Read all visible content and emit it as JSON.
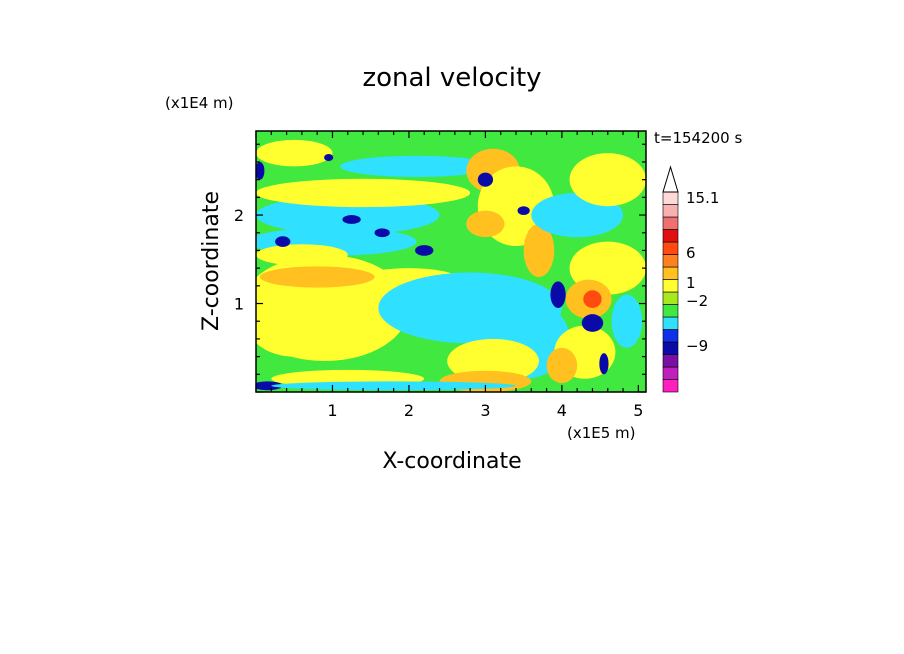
{
  "chart_data": {
    "type": "heatmap",
    "title": "zonal velocity",
    "xlabel": "X-coordinate",
    "ylabel": "Z-coordinate",
    "x_scale_label": "(x1E5 m)",
    "y_scale_label": "(x1E4 m)",
    "time_label": "t=154200 s",
    "xlim": [
      0,
      5.1
    ],
    "ylim": [
      0,
      2.95
    ],
    "x_ticks": [
      "1",
      "2",
      "3",
      "4",
      "5"
    ],
    "y_ticks": [
      "1",
      "2"
    ],
    "colorbar": {
      "tick_labels": [
        "15.1",
        "6",
        "1",
        "−2",
        "−9"
      ],
      "colors": [
        "#ff1fbf",
        "#c01fbf",
        "#7a0fa8",
        "#0a0aa8",
        "#1030e8",
        "#30e0ff",
        "#40e840",
        "#a8e820",
        "#ffff30",
        "#ffc020",
        "#ff8020",
        "#ff4a10",
        "#e01010",
        "#f07070",
        "#f8b0b0",
        "#ffd8d8"
      ]
    },
    "patches": [
      {
        "level": "green",
        "x": 2.3,
        "z": 0.85,
        "rx": 2.4,
        "rz": 0.75
      },
      {
        "level": "yellow",
        "x": 0.9,
        "z": 0.95,
        "rx": 1.1,
        "rz": 0.6
      },
      {
        "level": "yellow",
        "x": 0.5,
        "z": 0.75,
        "rx": 0.6,
        "rz": 0.35
      },
      {
        "level": "yellow",
        "x": 2.0,
        "z": 1.25,
        "rx": 0.7,
        "rz": 0.15
      },
      {
        "level": "orange",
        "x": 0.8,
        "z": 1.3,
        "rx": 0.75,
        "rz": 0.12
      },
      {
        "level": "cyan",
        "x": 2.8,
        "z": 0.95,
        "rx": 1.2,
        "rz": 0.4
      },
      {
        "level": "cyan",
        "x": 3.5,
        "z": 0.6,
        "rx": 0.6,
        "rz": 0.45
      },
      {
        "level": "yellow",
        "x": 3.1,
        "z": 0.35,
        "rx": 0.6,
        "rz": 0.25
      },
      {
        "level": "orange",
        "x": 3.0,
        "z": 0.12,
        "rx": 0.6,
        "rz": 0.12
      },
      {
        "level": "yellow",
        "x": 1.2,
        "z": 0.15,
        "rx": 1.0,
        "rz": 0.1
      },
      {
        "level": "blue",
        "x": 0.15,
        "z": 0.07,
        "rx": 0.2,
        "rz": 0.05
      },
      {
        "level": "cyan",
        "x": 1.8,
        "z": 0.07,
        "rx": 1.6,
        "rz": 0.05
      },
      {
        "level": "cyan",
        "x": 1.2,
        "z": 2.0,
        "rx": 1.2,
        "rz": 0.22
      },
      {
        "level": "yellow",
        "x": 1.4,
        "z": 2.25,
        "rx": 1.4,
        "rz": 0.16
      },
      {
        "level": "cyan",
        "x": 1.0,
        "z": 1.7,
        "rx": 1.1,
        "rz": 0.16
      },
      {
        "level": "yellow",
        "x": 0.6,
        "z": 1.55,
        "rx": 0.6,
        "rz": 0.12
      },
      {
        "level": "cyan",
        "x": 2.1,
        "z": 2.55,
        "rx": 1.0,
        "rz": 0.12
      },
      {
        "level": "yellow",
        "x": 0.5,
        "z": 2.7,
        "rx": 0.5,
        "rz": 0.15
      },
      {
        "level": "orange",
        "x": 3.1,
        "z": 2.5,
        "rx": 0.35,
        "rz": 0.25
      },
      {
        "level": "yellow",
        "x": 3.4,
        "z": 2.1,
        "rx": 0.5,
        "rz": 0.45
      },
      {
        "level": "orange",
        "x": 3.0,
        "z": 1.9,
        "rx": 0.25,
        "rz": 0.15
      },
      {
        "level": "orange",
        "x": 3.7,
        "z": 1.6,
        "rx": 0.2,
        "rz": 0.3
      },
      {
        "level": "cyan",
        "x": 4.2,
        "z": 2.0,
        "rx": 0.6,
        "rz": 0.25
      },
      {
        "level": "yellow",
        "x": 4.6,
        "z": 2.4,
        "rx": 0.5,
        "rz": 0.3
      },
      {
        "level": "yellow",
        "x": 4.6,
        "z": 1.4,
        "rx": 0.5,
        "rz": 0.3
      },
      {
        "level": "orange",
        "x": 4.35,
        "z": 1.05,
        "rx": 0.3,
        "rz": 0.22
      },
      {
        "level": "red",
        "x": 4.4,
        "z": 1.05,
        "rx": 0.12,
        "rz": 0.1
      },
      {
        "level": "yellow",
        "x": 4.3,
        "z": 0.45,
        "rx": 0.4,
        "rz": 0.3
      },
      {
        "level": "orange",
        "x": 4.0,
        "z": 0.3,
        "rx": 0.2,
        "rz": 0.2
      },
      {
        "level": "cyan",
        "x": 4.85,
        "z": 0.8,
        "rx": 0.2,
        "rz": 0.3
      },
      {
        "level": "blue",
        "x": 3.95,
        "z": 1.1,
        "rx": 0.1,
        "rz": 0.15
      },
      {
        "level": "blue",
        "x": 4.4,
        "z": 0.78,
        "rx": 0.14,
        "rz": 0.1
      },
      {
        "level": "blue",
        "x": 4.55,
        "z": 0.32,
        "rx": 0.06,
        "rz": 0.12
      },
      {
        "level": "blue",
        "x": 3.0,
        "z": 2.4,
        "rx": 0.1,
        "rz": 0.08
      },
      {
        "level": "blue",
        "x": 0.35,
        "z": 1.7,
        "rx": 0.1,
        "rz": 0.06
      },
      {
        "level": "blue",
        "x": 1.25,
        "z": 1.95,
        "rx": 0.12,
        "rz": 0.05
      },
      {
        "level": "blue",
        "x": 1.65,
        "z": 1.8,
        "rx": 0.1,
        "rz": 0.05
      },
      {
        "level": "blue",
        "x": 2.2,
        "z": 1.6,
        "rx": 0.12,
        "rz": 0.06
      },
      {
        "level": "blue",
        "x": 0.05,
        "z": 2.5,
        "rx": 0.06,
        "rz": 0.1
      },
      {
        "level": "blue",
        "x": 3.5,
        "z": 2.05,
        "rx": 0.08,
        "rz": 0.05
      },
      {
        "level": "blue",
        "x": 0.95,
        "z": 2.65,
        "rx": 0.06,
        "rz": 0.04
      }
    ]
  }
}
